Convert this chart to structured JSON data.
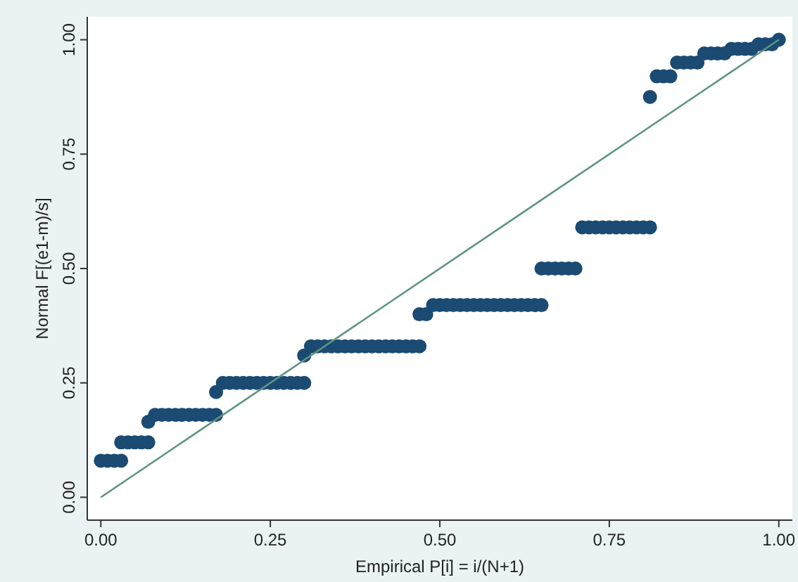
{
  "chart_data": {
    "type": "scatter",
    "xlabel": "Empirical P[i] = i/(N+1)",
    "ylabel": "Normal F[(e1-m)/s]",
    "xlim": [
      -0.02,
      1.02
    ],
    "ylim": [
      -0.05,
      1.05
    ],
    "xticks": [
      {
        "value": 0,
        "label": "0.00"
      },
      {
        "value": 0.25,
        "label": "0.25"
      },
      {
        "value": 0.5,
        "label": "0.50"
      },
      {
        "value": 0.75,
        "label": "0.75"
      },
      {
        "value": 1,
        "label": "1.00"
      }
    ],
    "yticks": [
      {
        "value": 0,
        "label": "0.00"
      },
      {
        "value": 0.25,
        "label": "0.25"
      },
      {
        "value": 0.5,
        "label": "0.50"
      },
      {
        "value": 0.75,
        "label": "0.75"
      },
      {
        "value": 1,
        "label": "1.00"
      }
    ],
    "grid": false,
    "marker": "circle",
    "series": [
      {
        "color": "#1b4a72",
        "x": [
          0,
          0.01,
          0.02,
          0.03,
          0.03,
          0.04,
          0.05,
          0.06,
          0.07,
          0.07,
          0.08,
          0.09,
          0.1,
          0.11,
          0.12,
          0.13,
          0.14,
          0.15,
          0.16,
          0.17,
          0.17,
          0.18,
          0.19,
          0.2,
          0.21,
          0.22,
          0.23,
          0.24,
          0.25,
          0.26,
          0.27,
          0.28,
          0.29,
          0.3,
          0.3,
          0.31,
          0.32,
          0.33,
          0.34,
          0.35,
          0.36,
          0.37,
          0.38,
          0.39,
          0.4,
          0.41,
          0.42,
          0.43,
          0.44,
          0.45,
          0.46,
          0.47,
          0.47,
          0.48,
          0.49,
          0.5,
          0.51,
          0.52,
          0.53,
          0.54,
          0.55,
          0.56,
          0.57,
          0.58,
          0.59,
          0.6,
          0.61,
          0.62,
          0.63,
          0.64,
          0.65,
          0.65,
          0.66,
          0.67,
          0.68,
          0.69,
          0.7,
          0.71,
          0.72,
          0.73,
          0.74,
          0.75,
          0.76,
          0.77,
          0.78,
          0.79,
          0.8,
          0.81,
          0.81,
          0.82,
          0.83,
          0.84,
          0.85,
          0.86,
          0.87,
          0.88,
          0.89,
          0.9,
          0.91,
          0.92,
          0.93,
          0.94,
          0.95,
          0.96,
          0.97,
          0.98,
          0.99,
          1
        ],
        "values": [
          0.08,
          0.08,
          0.08,
          0.08,
          0.12,
          0.12,
          0.12,
          0.12,
          0.12,
          0.165,
          0.18,
          0.18,
          0.18,
          0.18,
          0.18,
          0.18,
          0.18,
          0.18,
          0.18,
          0.18,
          0.23,
          0.25,
          0.25,
          0.25,
          0.25,
          0.25,
          0.25,
          0.25,
          0.25,
          0.25,
          0.25,
          0.25,
          0.25,
          0.25,
          0.31,
          0.33,
          0.33,
          0.33,
          0.33,
          0.33,
          0.33,
          0.33,
          0.33,
          0.33,
          0.33,
          0.33,
          0.33,
          0.33,
          0.33,
          0.33,
          0.33,
          0.33,
          0.4,
          0.4,
          0.42,
          0.42,
          0.42,
          0.42,
          0.42,
          0.42,
          0.42,
          0.42,
          0.42,
          0.42,
          0.42,
          0.42,
          0.42,
          0.42,
          0.42,
          0.42,
          0.42,
          0.5,
          0.5,
          0.5,
          0.5,
          0.5,
          0.5,
          0.59,
          0.59,
          0.59,
          0.59,
          0.59,
          0.59,
          0.59,
          0.59,
          0.59,
          0.59,
          0.59,
          0.875,
          0.92,
          0.92,
          0.92,
          0.95,
          0.95,
          0.95,
          0.95,
          0.97,
          0.97,
          0.97,
          0.97,
          0.98,
          0.98,
          0.98,
          0.98,
          0.99,
          0.99,
          0.99,
          1
        ]
      },
      {
        "type": "line",
        "color": "#5e9482",
        "x": [
          0,
          1
        ],
        "values": [
          0,
          1
        ],
        "marker": "none"
      }
    ]
  }
}
